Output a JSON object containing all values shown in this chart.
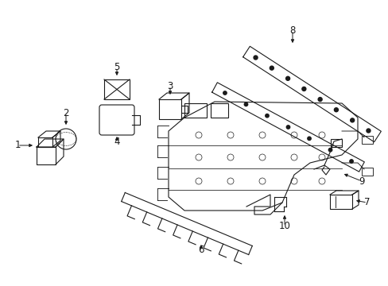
{
  "bg_color": "#ffffff",
  "line_color": "#1a1a1a",
  "fig_width": 4.89,
  "fig_height": 3.6,
  "dpi": 100,
  "lw": 0.8,
  "fs": 8.5
}
